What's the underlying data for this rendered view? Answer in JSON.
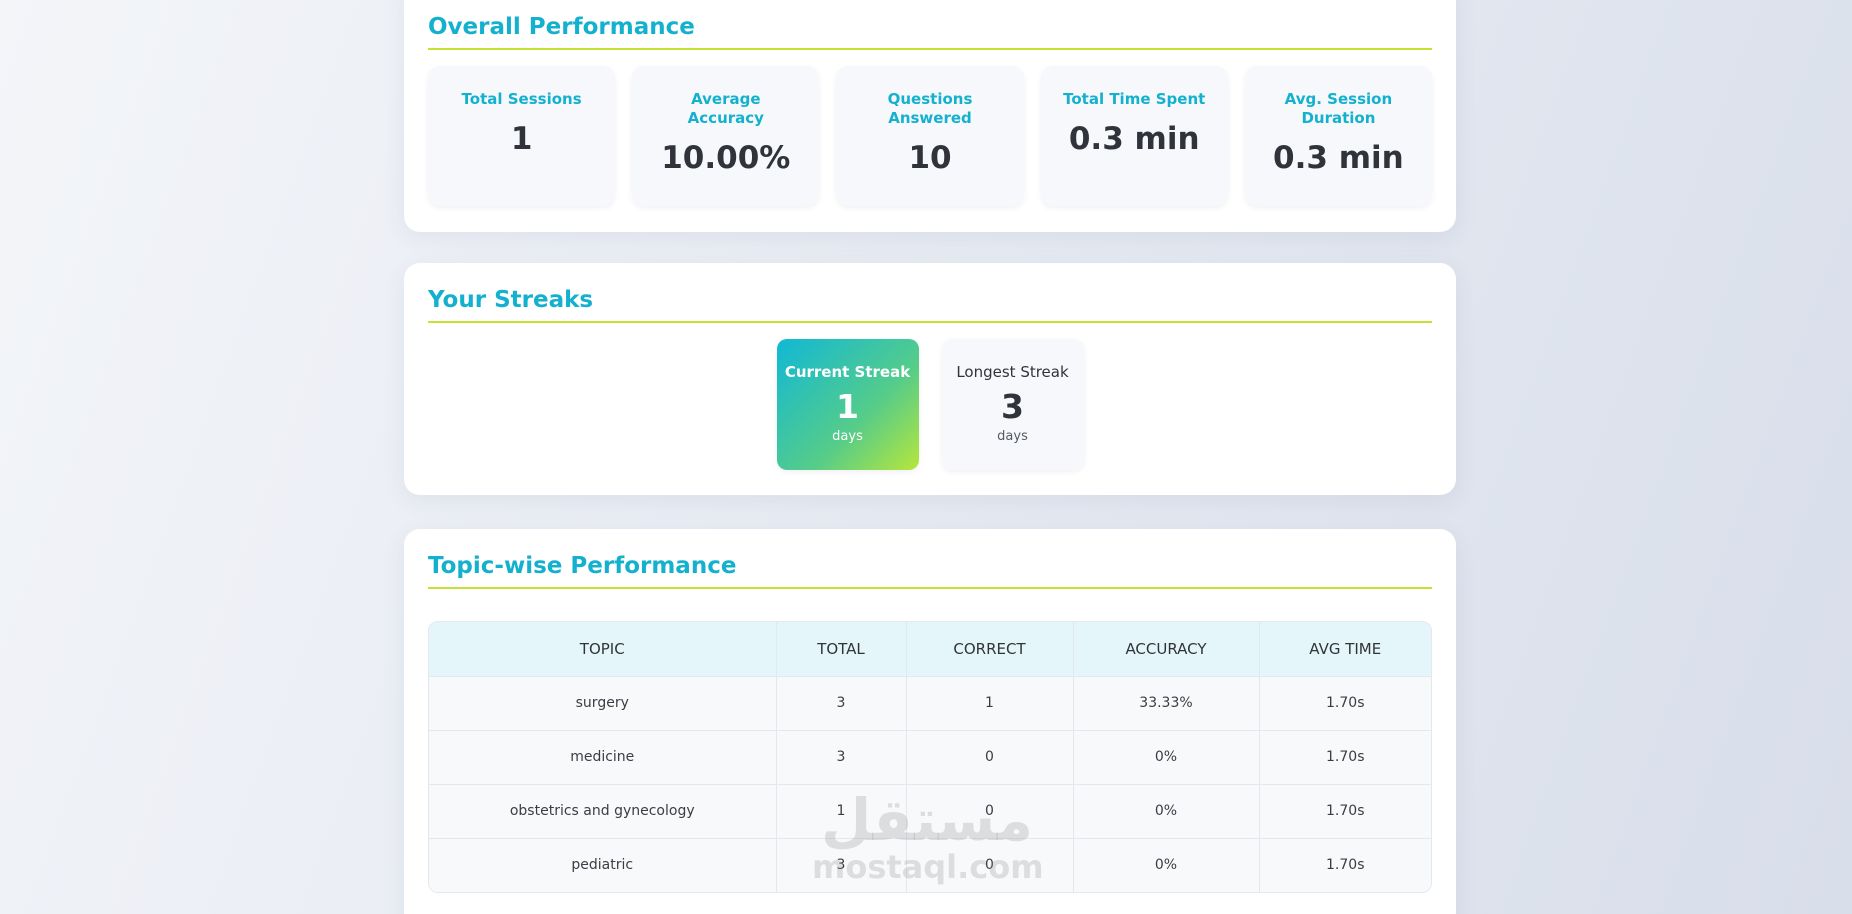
{
  "overall": {
    "title": "Overall Performance",
    "stats": [
      {
        "label": "Total Sessions",
        "value": "1"
      },
      {
        "label": "Average Accuracy",
        "value": "10.00%"
      },
      {
        "label": "Questions Answered",
        "value": "10"
      },
      {
        "label": "Total Time Spent",
        "value": "0.3 min"
      },
      {
        "label": "Avg. Session Duration",
        "value": "0.3 min"
      }
    ]
  },
  "streaks": {
    "title": "Your Streaks",
    "current": {
      "label": "Current Streak",
      "value": "1",
      "unit": "days"
    },
    "longest": {
      "label": "Longest Streak",
      "value": "3",
      "unit": "days"
    }
  },
  "topics": {
    "title": "Topic-wise Performance",
    "columns": [
      "TOPIC",
      "TOTAL",
      "CORRECT",
      "ACCURACY",
      "AVG TIME"
    ],
    "rows": [
      [
        "surgery",
        "3",
        "1",
        "33.33%",
        "1.70s"
      ],
      [
        "medicine",
        "3",
        "0",
        "0%",
        "1.70s"
      ],
      [
        "obstetrics and gynecology",
        "1",
        "0",
        "0%",
        "1.70s"
      ],
      [
        "pediatric",
        "3",
        "0",
        "0%",
        "1.70s"
      ]
    ]
  },
  "watermark": {
    "arabic": "مستقل",
    "latin": "mostaql.com"
  },
  "colors": {
    "accent": "#14b1cf",
    "underline": "#c4e233",
    "streak_gradient_end": "#b6e63c"
  }
}
